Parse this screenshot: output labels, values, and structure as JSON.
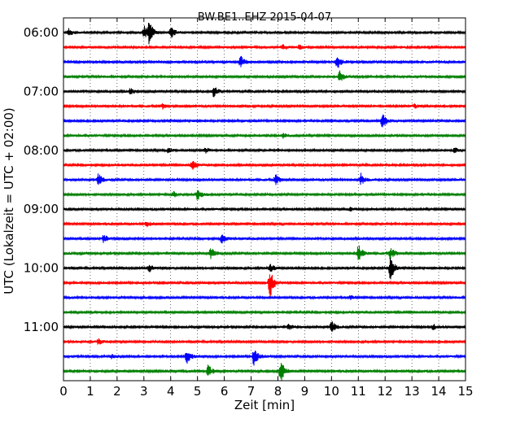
{
  "chart_data": {
    "type": "line",
    "title": "BW.BE1..EHZ 2015-04-07",
    "xlabel": "Zeit  [min]",
    "ylabel": "UTC (Lokalzeit = UTC + 02:00)",
    "xlim": [
      0,
      15
    ],
    "x_ticks": [
      "0",
      "1",
      "2",
      "3",
      "4",
      "5",
      "6",
      "7",
      "8",
      "9",
      "10",
      "11",
      "12",
      "13",
      "14",
      "15"
    ],
    "y_ticks": [
      "06:00",
      "07:00",
      "08:00",
      "09:00",
      "10:00",
      "11:00"
    ],
    "grid": "vertical dotted",
    "trace_colors": [
      "#000000",
      "#ff0000",
      "#0000ff",
      "#008000"
    ],
    "series": [
      {
        "start": "06:00",
        "color": "#000000",
        "events": [
          [
            0.2,
            0.5
          ],
          [
            3.0,
            1.0
          ],
          [
            3.2,
            1.6
          ],
          [
            4.0,
            0.9
          ]
        ]
      },
      {
        "start": "06:15",
        "color": "#ff0000",
        "events": [
          [
            8.2,
            0.4
          ],
          [
            8.8,
            0.3
          ]
        ]
      },
      {
        "start": "06:30",
        "color": "#0000ff",
        "events": [
          [
            6.6,
            0.9
          ],
          [
            10.2,
            1.1
          ]
        ]
      },
      {
        "start": "06:45",
        "color": "#008000",
        "events": [
          [
            10.3,
            0.9
          ]
        ]
      },
      {
        "start": "07:00",
        "color": "#000000",
        "events": [
          [
            2.5,
            0.4
          ],
          [
            5.6,
            0.8
          ]
        ]
      },
      {
        "start": "07:15",
        "color": "#ff0000",
        "events": [
          [
            3.7,
            0.3
          ],
          [
            13.1,
            0.3
          ]
        ]
      },
      {
        "start": "07:30",
        "color": "#0000ff",
        "events": [
          [
            11.9,
            1.2
          ]
        ]
      },
      {
        "start": "07:45",
        "color": "#008000",
        "events": [
          [
            8.2,
            0.3
          ]
        ]
      },
      {
        "start": "08:00",
        "color": "#000000",
        "events": [
          [
            3.9,
            0.3
          ],
          [
            5.3,
            0.4
          ],
          [
            14.6,
            0.4
          ]
        ]
      },
      {
        "start": "08:15",
        "color": "#ff0000",
        "events": [
          [
            4.8,
            0.7
          ]
        ]
      },
      {
        "start": "08:30",
        "color": "#0000ff",
        "events": [
          [
            1.3,
            0.9
          ],
          [
            7.9,
            0.8
          ],
          [
            11.1,
            0.8
          ]
        ]
      },
      {
        "start": "08:45",
        "color": "#008000",
        "events": [
          [
            4.1,
            0.4
          ],
          [
            5.0,
            0.9
          ]
        ]
      },
      {
        "start": "09:00",
        "color": "#000000",
        "events": [
          [
            10.7,
            0.3
          ]
        ]
      },
      {
        "start": "09:15",
        "color": "#ff0000",
        "events": [
          [
            3.1,
            0.5
          ]
        ]
      },
      {
        "start": "09:30",
        "color": "#0000ff",
        "events": [
          [
            1.5,
            0.6
          ],
          [
            5.9,
            0.7
          ]
        ]
      },
      {
        "start": "09:45",
        "color": "#008000",
        "events": [
          [
            5.5,
            0.9
          ],
          [
            11.0,
            1.3
          ],
          [
            12.2,
            0.9
          ]
        ]
      },
      {
        "start": "10:00",
        "color": "#000000",
        "events": [
          [
            3.2,
            0.5
          ],
          [
            7.7,
            0.6
          ],
          [
            12.2,
            1.8
          ]
        ]
      },
      {
        "start": "10:15",
        "color": "#ff0000",
        "events": [
          [
            7.7,
            2.2
          ]
        ]
      },
      {
        "start": "10:30",
        "color": "#0000ff",
        "events": [
          [
            10.7,
            0.3
          ]
        ]
      },
      {
        "start": "10:45",
        "color": "#008000",
        "events": []
      },
      {
        "start": "11:00",
        "color": "#000000",
        "events": [
          [
            8.4,
            0.4
          ],
          [
            10.0,
            0.9
          ],
          [
            13.8,
            0.4
          ]
        ]
      },
      {
        "start": "11:15",
        "color": "#ff0000",
        "events": [
          [
            1.3,
            0.4
          ]
        ]
      },
      {
        "start": "11:30",
        "color": "#0000ff",
        "events": [
          [
            4.6,
            1.0
          ],
          [
            7.1,
            1.3
          ],
          [
            1.8,
            0.3
          ]
        ]
      },
      {
        "start": "11:45",
        "color": "#008000",
        "events": [
          [
            5.4,
            0.9
          ],
          [
            8.1,
            1.6
          ]
        ]
      }
    ]
  }
}
